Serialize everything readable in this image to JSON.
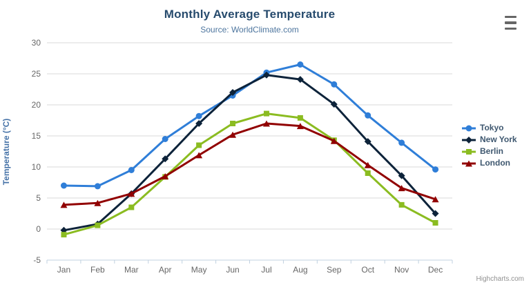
{
  "header": {
    "title": "Monthly Average Temperature",
    "subtitle": "Source: WorldClimate.com"
  },
  "credits": "Highcharts.com",
  "export_menu": {
    "icon": "hamburger-icon"
  },
  "palette": {
    "title_color": "#274b6d",
    "subtitle_color": "#4d759e",
    "axis_label_color": "#666666",
    "y_axis_title_color": "#4572a7",
    "legend_text_color": "#3e576f",
    "grid_color": "#d8d8d8",
    "axis_line_color": "#c0d0e0",
    "credits_color": "#909090"
  },
  "chart_data": {
    "type": "line",
    "title": "Monthly Average Temperature",
    "subtitle": "Source: WorldClimate.com",
    "xlabel": "",
    "ylabel": "Temperature (°C)",
    "ylim": [
      -5,
      30
    ],
    "ytick_step": 5,
    "grid": true,
    "legend_position": "right",
    "categories": [
      "Jan",
      "Feb",
      "Mar",
      "Apr",
      "May",
      "Jun",
      "Jul",
      "Aug",
      "Sep",
      "Oct",
      "Nov",
      "Dec"
    ],
    "series": [
      {
        "name": "Tokyo",
        "color": "#2f7ed8",
        "marker": "circle",
        "values": [
          7.0,
          6.9,
          9.5,
          14.5,
          18.2,
          21.5,
          25.2,
          26.5,
          23.3,
          18.3,
          13.9,
          9.6
        ]
      },
      {
        "name": "New York",
        "color": "#0d233a",
        "marker": "diamond",
        "values": [
          -0.2,
          0.8,
          5.7,
          11.3,
          17.0,
          22.0,
          24.8,
          24.1,
          20.1,
          14.1,
          8.6,
          2.5
        ]
      },
      {
        "name": "Berlin",
        "color": "#8bbc21",
        "marker": "square",
        "values": [
          -0.9,
          0.6,
          3.5,
          8.4,
          13.5,
          17.0,
          18.6,
          17.9,
          14.3,
          9.0,
          3.9,
          1.0
        ]
      },
      {
        "name": "London",
        "color": "#910000",
        "marker": "triangle",
        "values": [
          3.9,
          4.2,
          5.7,
          8.5,
          11.9,
          15.2,
          17.0,
          16.6,
          14.2,
          10.3,
          6.6,
          4.8
        ]
      }
    ]
  }
}
